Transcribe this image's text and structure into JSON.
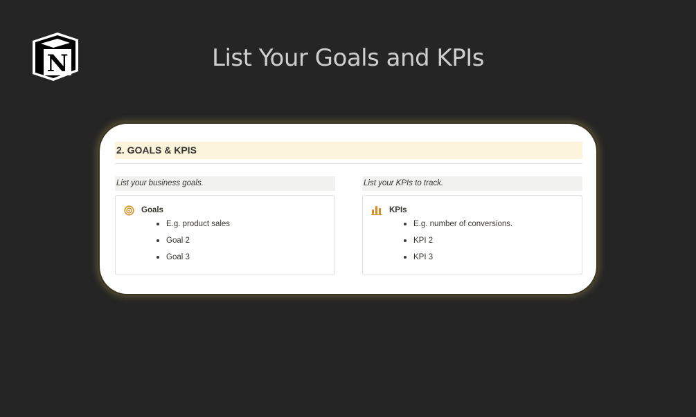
{
  "page": {
    "title": "List Your Goals and KPIs",
    "logo": "N"
  },
  "section": {
    "heading": "2. GOALS & KPIS"
  },
  "columns": [
    {
      "label": "List your business goals.",
      "icon": "target-icon",
      "title": "Goals",
      "items": [
        "E.g. product sales",
        "Goal 2",
        "Goal 3"
      ]
    },
    {
      "label": "List your KPIs to track.",
      "icon": "bar-chart-icon",
      "title": "KPIs",
      "items": [
        "E.g. number of conversions.",
        "KPI 2",
        "KPI 3"
      ]
    }
  ],
  "colors": {
    "accent": "#d9902a",
    "heading_bg": "#fbf3db",
    "label_bg": "#f1f1ef"
  }
}
